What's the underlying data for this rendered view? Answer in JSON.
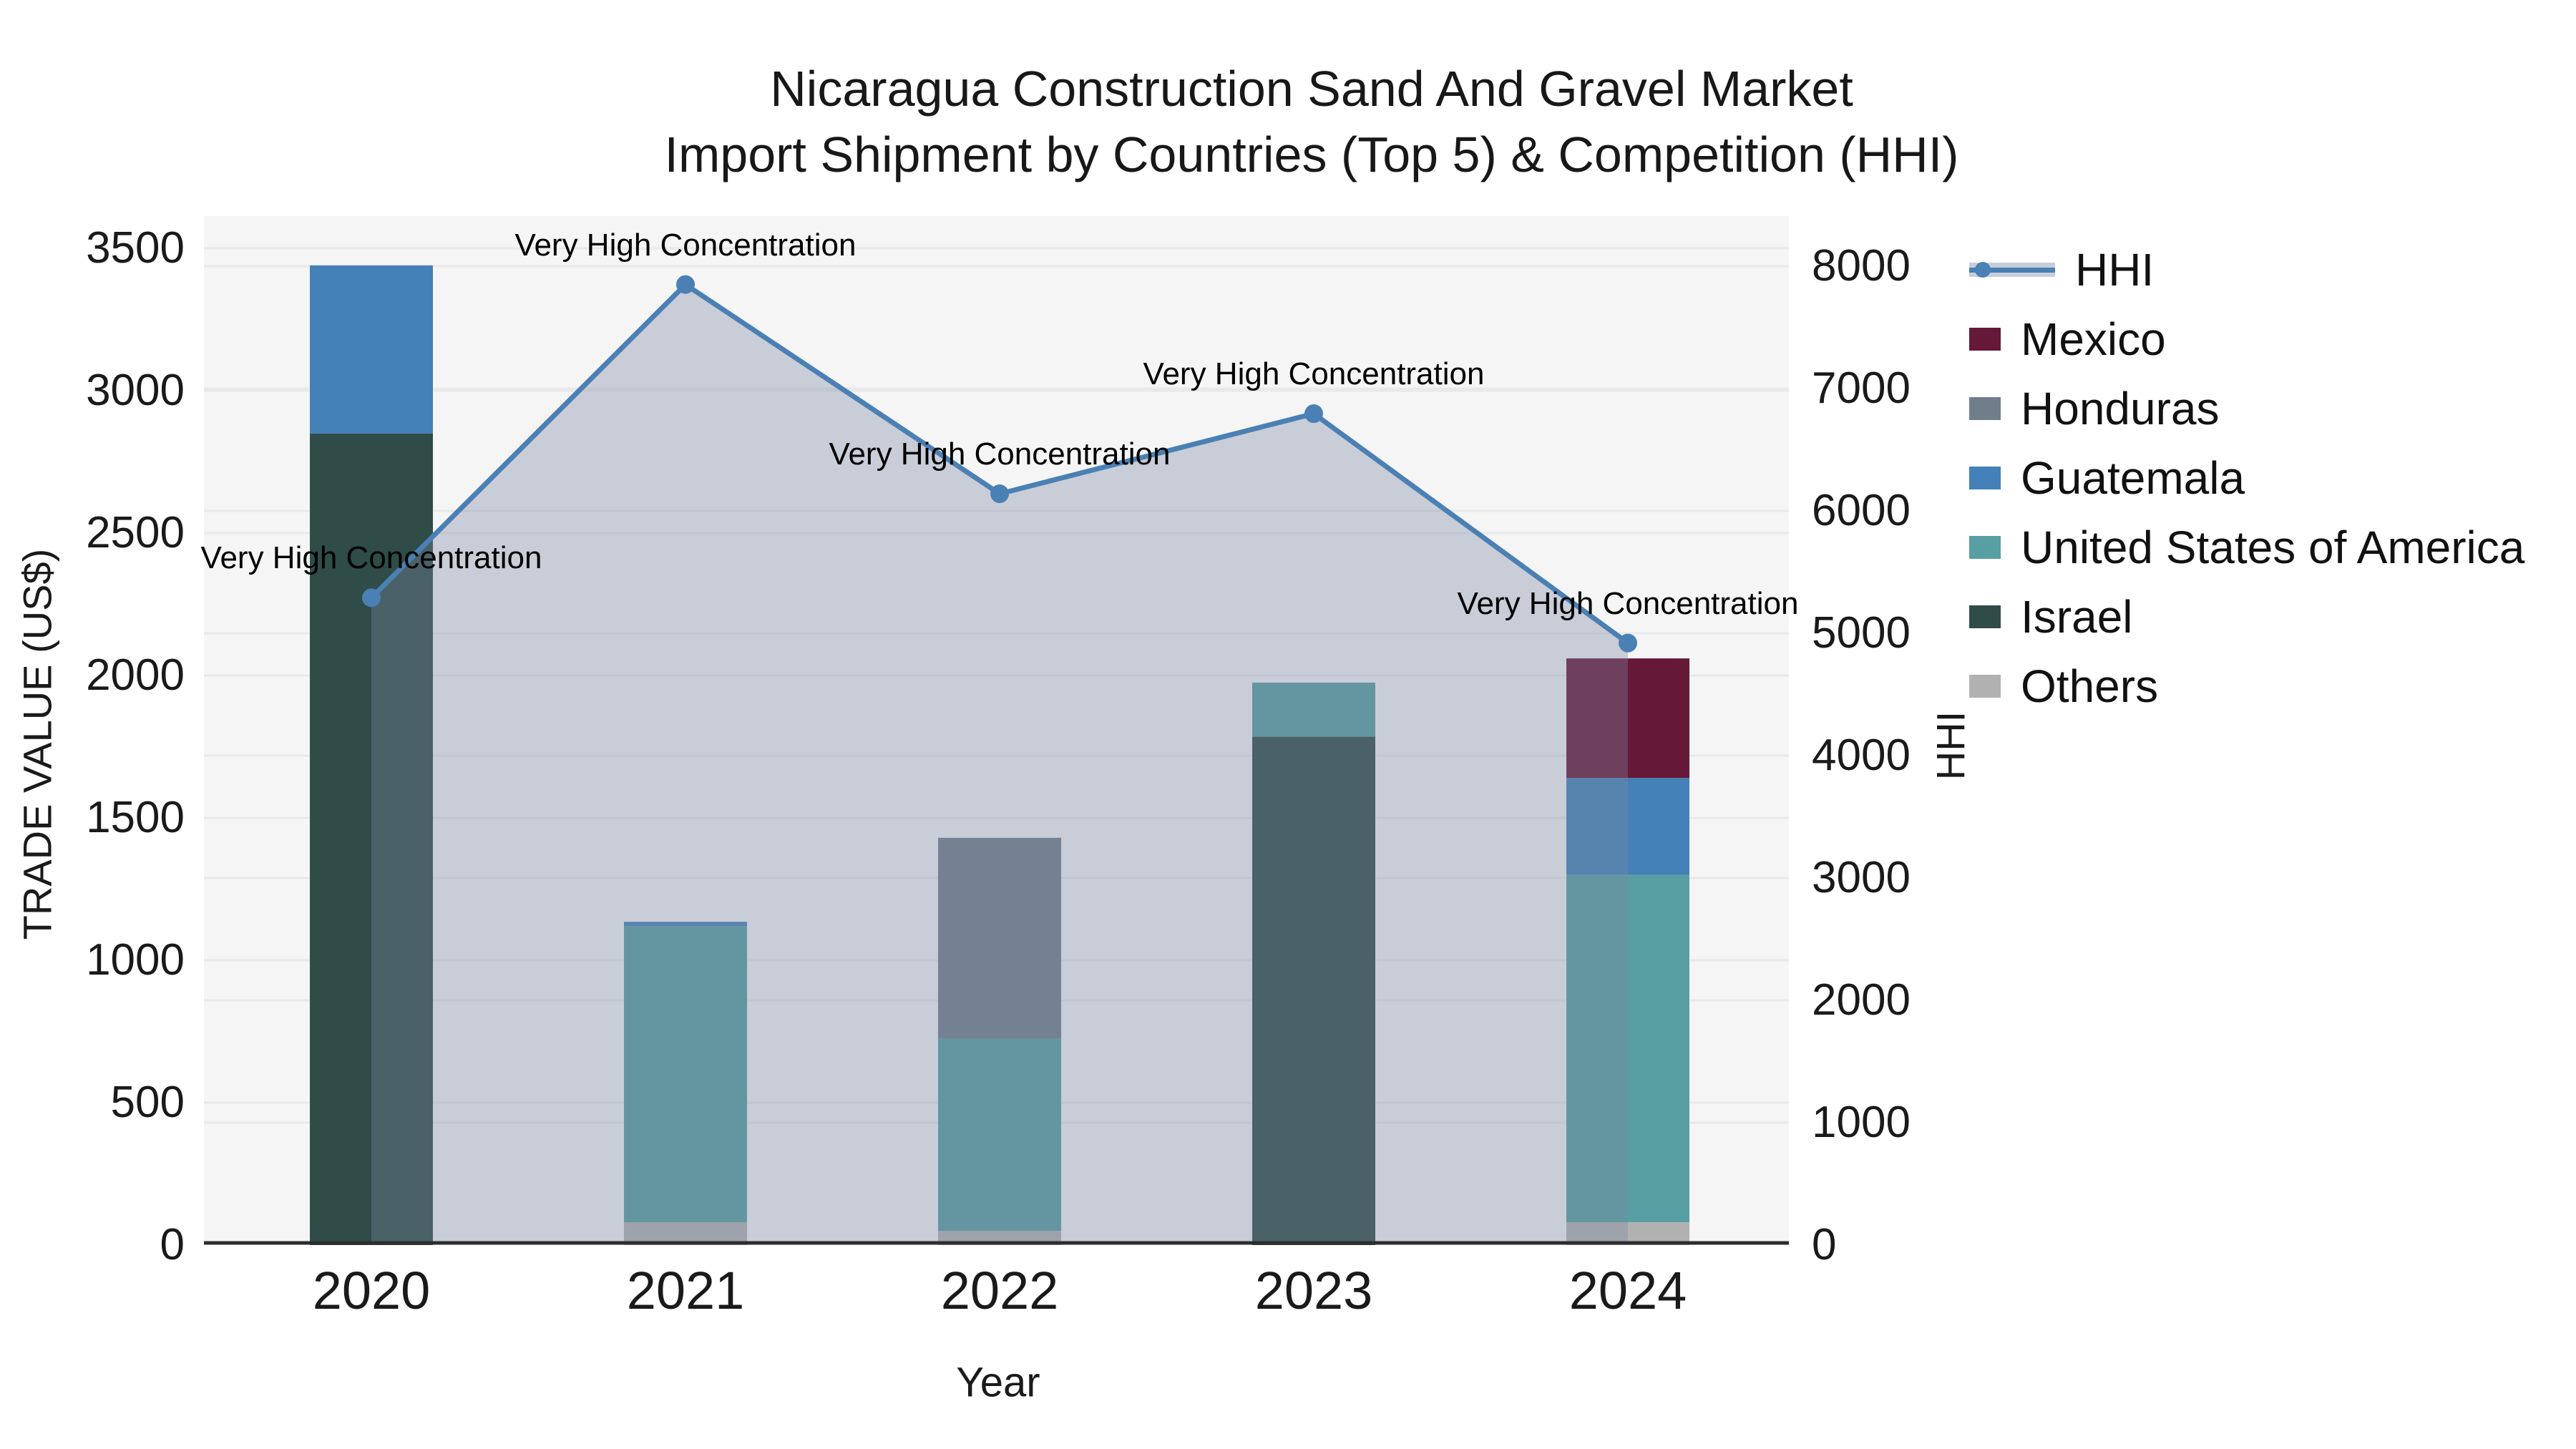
{
  "title": {
    "line1": "Nicaragua Construction Sand And Gravel Market",
    "line2": "Import Shipment by Countries (Top 5) & Competition (HHI)"
  },
  "axes": {
    "x_label": "Year",
    "y_left_label": "TRADE VALUE (US$)",
    "y_right_label": "HHI"
  },
  "legend": [
    {
      "label": "HHI",
      "type": "line",
      "color": "#4a80b4"
    },
    {
      "label": "Mexico",
      "type": "patch",
      "color": "#661838"
    },
    {
      "label": "Honduras",
      "type": "patch",
      "color": "#707e8c"
    },
    {
      "label": "Guatemala",
      "type": "patch",
      "color": "#4381b8"
    },
    {
      "label": "United States of America",
      "type": "patch",
      "color": "#579fa2"
    },
    {
      "label": "Israel",
      "type": "patch",
      "color": "#2f4c48"
    },
    {
      "label": "Others",
      "type": "patch",
      "color": "#b1b1b1"
    }
  ],
  "chart_data": {
    "type": "bar",
    "subtype": "stacked-bars-with-line-on-secondary-axis",
    "categories": [
      "2020",
      "2021",
      "2022",
      "2023",
      "2024"
    ],
    "bar_series_bottom_to_top": [
      {
        "name": "Others",
        "color": "#b1b1b1",
        "values": [
          0,
          80,
          50,
          0,
          80
        ]
      },
      {
        "name": "Israel",
        "color": "#2f4c48",
        "values": [
          2850,
          0,
          0,
          1785,
          0
        ]
      },
      {
        "name": "United States of America",
        "color": "#579fa2",
        "values": [
          0,
          1040,
          675,
          190,
          1220
        ]
      },
      {
        "name": "Guatemala",
        "color": "#4381b8",
        "values": [
          590,
          15,
          0,
          0,
          340
        ]
      },
      {
        "name": "Honduras",
        "color": "#707e8c",
        "values": [
          0,
          0,
          705,
          0,
          0
        ]
      },
      {
        "name": "Mexico",
        "color": "#661838",
        "values": [
          0,
          0,
          0,
          0,
          420
        ]
      }
    ],
    "bar_totals": [
      3440,
      1135,
      1430,
      1975,
      2060
    ],
    "line_series": {
      "name": "HHI",
      "axis": "right",
      "color": "#4a80b4",
      "area_color": "#7c87a0",
      "area_opacity": 0.36,
      "values": [
        5290,
        7850,
        6140,
        6795,
        4920
      ]
    },
    "annotations": [
      {
        "category": "2020",
        "text": "Very High Concentration"
      },
      {
        "category": "2021",
        "text": "Very High Concentration"
      },
      {
        "category": "2022",
        "text": "Very High Concentration"
      },
      {
        "category": "2023",
        "text": "Very High Concentration"
      },
      {
        "category": "2024",
        "text": "Very High Concentration"
      }
    ],
    "xlabel": "Year",
    "ylabel_left": "TRADE VALUE (US$)",
    "ylabel_right": "HHI",
    "y_left": {
      "min": 0,
      "max": 3500,
      "ticks": [
        0,
        500,
        1000,
        1500,
        2000,
        2500,
        3000,
        3500
      ]
    },
    "y_right": {
      "min": 0,
      "max": 8000,
      "ticks": [
        0,
        1000,
        2000,
        3000,
        4000,
        5000,
        6000,
        7000,
        8000
      ]
    },
    "grid": true,
    "legend_position": "right-outside",
    "plot_background": "#f5f5f6",
    "grid_color": "#e9e9eb"
  }
}
